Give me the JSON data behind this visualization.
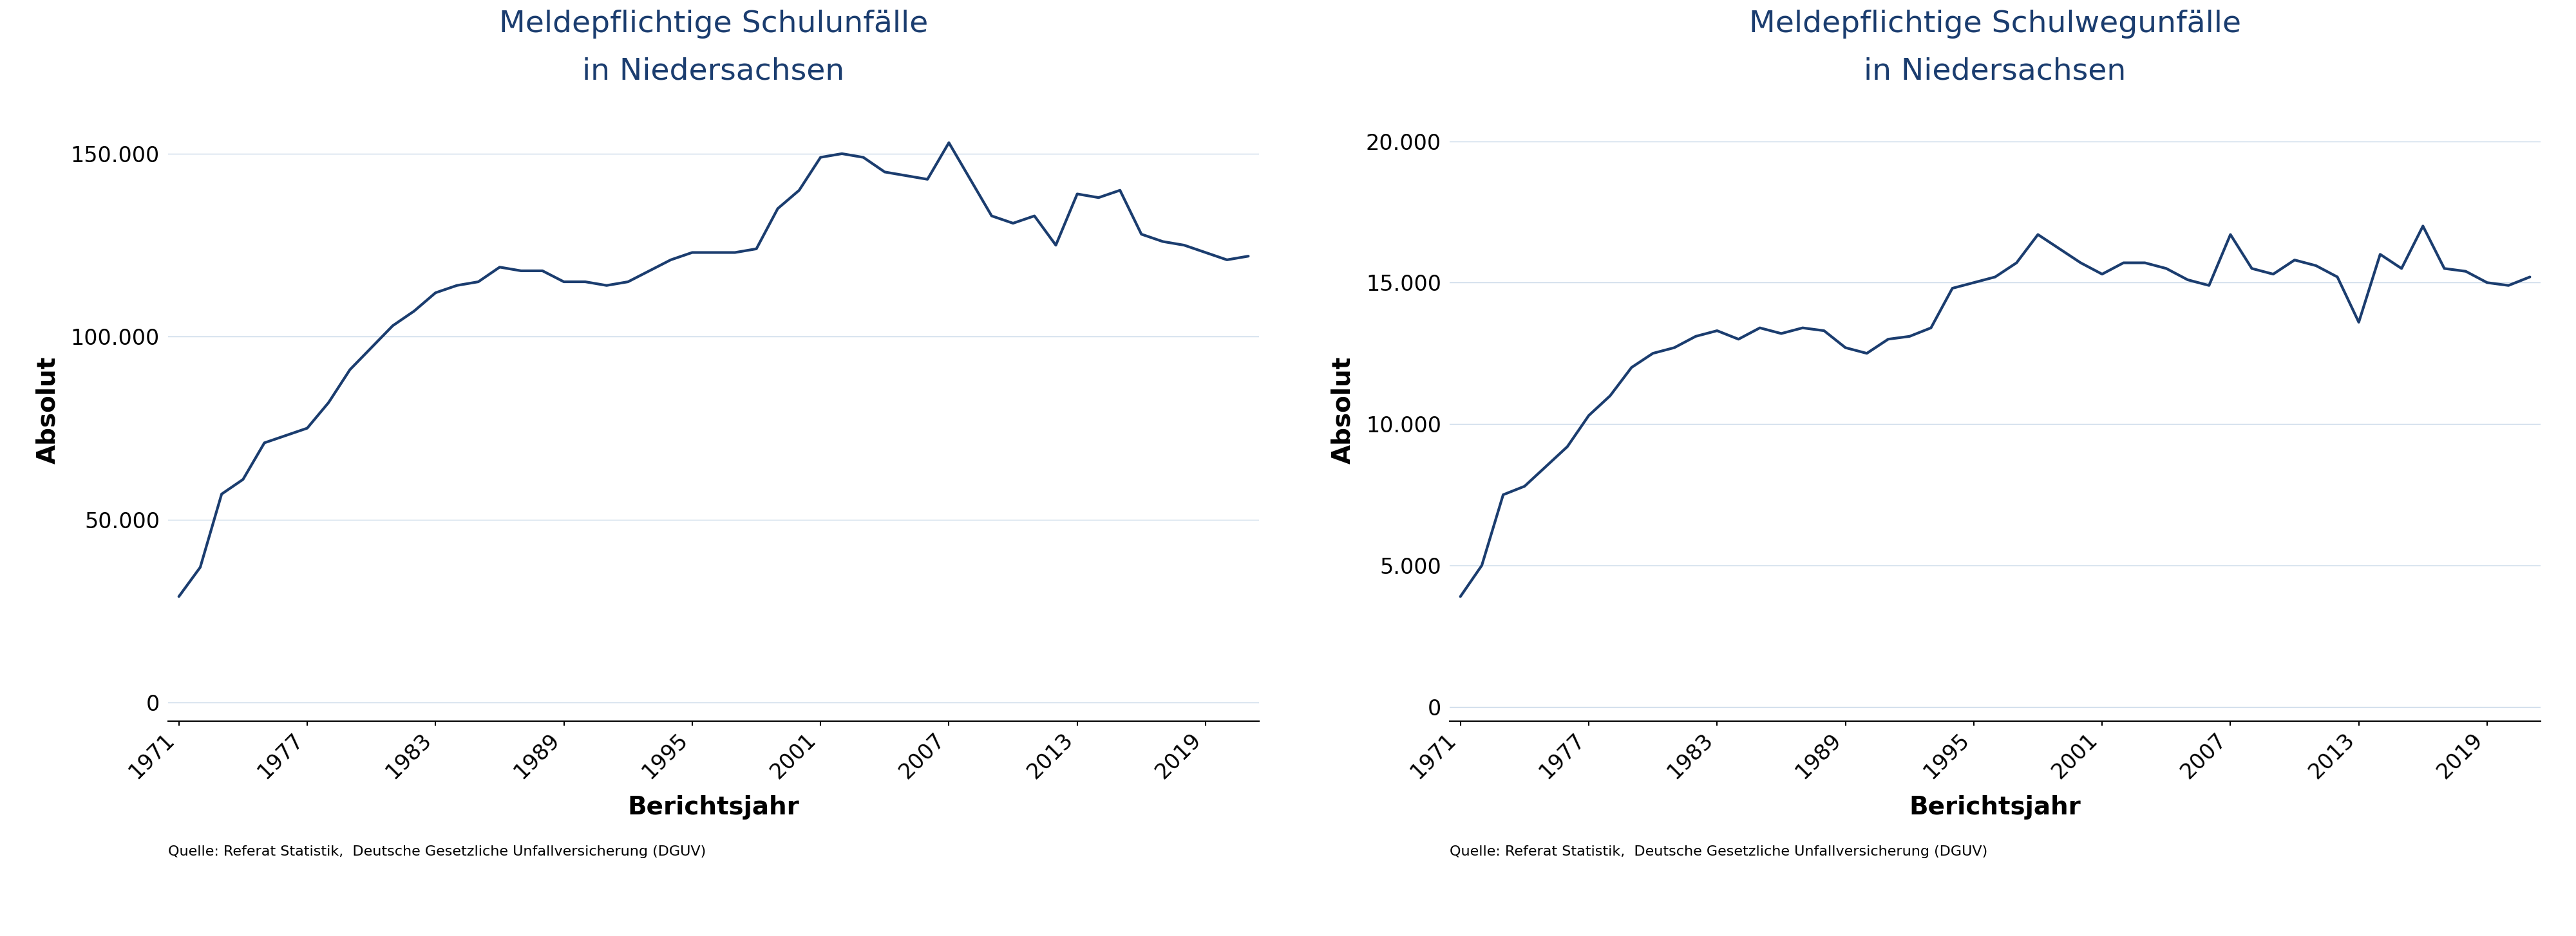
{
  "chart1": {
    "title_line1": "Meldepflichtige Schulunfälle",
    "title_line2": "in Niedersachsen",
    "xlabel": "Berichtsjahr",
    "ylabel": "Absolut",
    "source": "Quelle: Referat Statistik,  Deutsche Gesetzliche Unfallversicherung (DGUV)",
    "years": [
      1971,
      1972,
      1973,
      1974,
      1975,
      1976,
      1977,
      1978,
      1979,
      1980,
      1981,
      1982,
      1983,
      1984,
      1985,
      1986,
      1987,
      1988,
      1989,
      1990,
      1991,
      1992,
      1993,
      1994,
      1995,
      1996,
      1997,
      1998,
      1999,
      2000,
      2001,
      2002,
      2003,
      2004,
      2005,
      2006,
      2007,
      2008,
      2009,
      2010,
      2011,
      2012,
      2013,
      2014,
      2015,
      2016,
      2017,
      2018,
      2019,
      2020,
      2021
    ],
    "values": [
      29000,
      37000,
      57000,
      61000,
      71000,
      73000,
      75000,
      82000,
      91000,
      97000,
      103000,
      107000,
      112000,
      114000,
      115000,
      119000,
      118000,
      118000,
      115000,
      115000,
      114000,
      115000,
      118000,
      121000,
      123000,
      123000,
      123000,
      124000,
      135000,
      140000,
      149000,
      150000,
      149000,
      145000,
      144000,
      143000,
      153000,
      143000,
      133000,
      131000,
      133000,
      125000,
      139000,
      138000,
      140000,
      128000,
      126000,
      125000,
      123000,
      121000,
      122000
    ],
    "yticks": [
      0,
      50000,
      100000,
      150000
    ],
    "ylim": [
      -5000,
      165000
    ],
    "xlim": [
      1970.5,
      2021.5
    ],
    "xticks": [
      1971,
      1977,
      1983,
      1989,
      1995,
      2001,
      2007,
      2013,
      2019
    ],
    "line_color": "#1b3d6f",
    "line_width": 3.0
  },
  "chart2": {
    "title_line1": "Meldepflichtige Schulwegunfälle",
    "title_line2": "in Niedersachsen",
    "xlabel": "Berichtsjahr",
    "ylabel": "Absolut",
    "source": "Quelle: Referat Statistik,  Deutsche Gesetzliche Unfallversicherung (DGUV)",
    "years": [
      1971,
      1972,
      1973,
      1974,
      1975,
      1976,
      1977,
      1978,
      1979,
      1980,
      1981,
      1982,
      1983,
      1984,
      1985,
      1986,
      1987,
      1988,
      1989,
      1990,
      1991,
      1992,
      1993,
      1994,
      1995,
      1996,
      1997,
      1998,
      1999,
      2000,
      2001,
      2002,
      2003,
      2004,
      2005,
      2006,
      2007,
      2008,
      2009,
      2010,
      2011,
      2012,
      2013,
      2014,
      2015,
      2016,
      2017,
      2018,
      2019,
      2020,
      2021
    ],
    "values": [
      3900,
      5000,
      7500,
      7800,
      8500,
      9200,
      10300,
      11000,
      12000,
      12500,
      12700,
      13100,
      13300,
      13000,
      13400,
      13200,
      13400,
      13300,
      12700,
      12500,
      13000,
      13100,
      13400,
      14800,
      15000,
      15200,
      15700,
      16700,
      16200,
      15700,
      15300,
      15700,
      15700,
      15500,
      15100,
      14900,
      16700,
      15500,
      15300,
      15800,
      15600,
      15200,
      13600,
      16000,
      15500,
      17000,
      15500,
      15400,
      15000,
      14900,
      15200
    ],
    "yticks": [
      0,
      5000,
      10000,
      15000,
      20000
    ],
    "ylim": [
      -500,
      21500
    ],
    "xlim": [
      1970.5,
      2021.5
    ],
    "xticks": [
      1971,
      1977,
      1983,
      1989,
      1995,
      2001,
      2007,
      2013,
      2019
    ],
    "line_color": "#1b3d6f",
    "line_width": 3.0
  },
  "bg_color": "#ffffff",
  "title_color": "#1b3d6f",
  "axis_color": "#000000",
  "grid_color": "#c8d8e8",
  "title_fontsize": 34,
  "label_fontsize": 28,
  "tick_fontsize": 24,
  "source_fontsize": 16,
  "figsize": [
    40.0,
    14.55
  ]
}
